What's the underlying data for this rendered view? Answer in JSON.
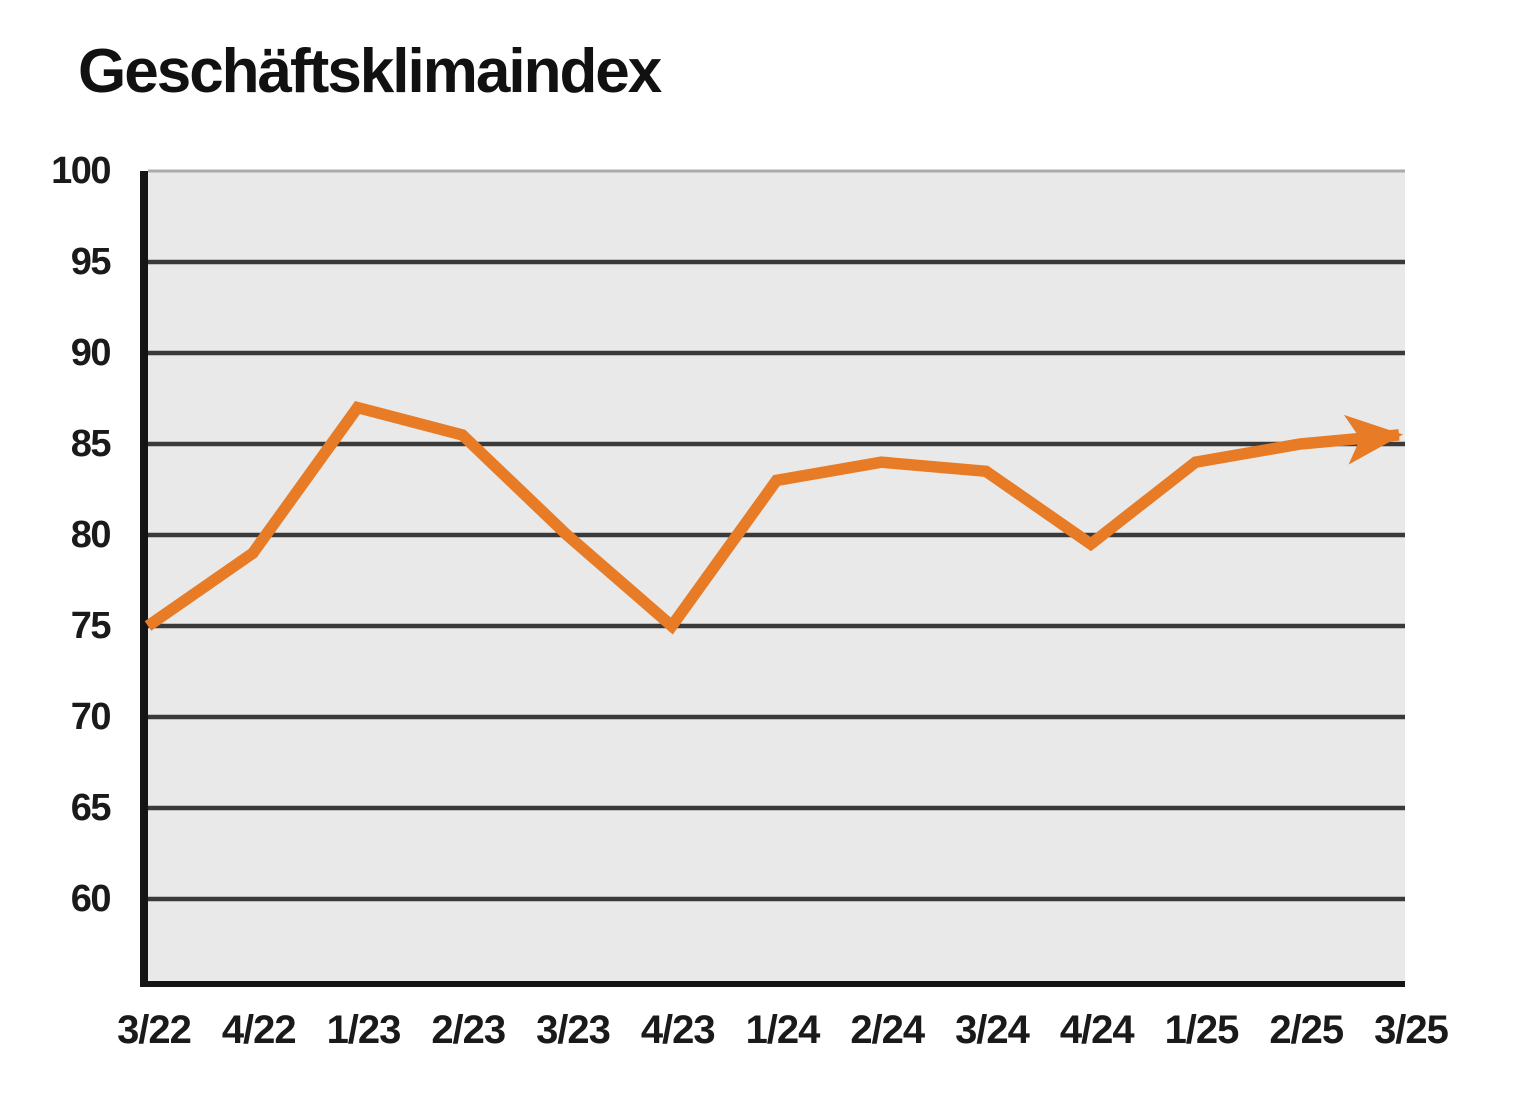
{
  "chart_data": {
    "type": "line",
    "title": "Geschäftsklimaindex",
    "categories": [
      "3/22",
      "4/22",
      "1/23",
      "2/23",
      "3/23",
      "4/23",
      "1/24",
      "2/24",
      "3/24",
      "4/24",
      "1/25",
      "2/25",
      "3/25"
    ],
    "series": [
      {
        "name": "Geschäftsklimaindex",
        "values": [
          75,
          79,
          87,
          85.5,
          80,
          75,
          83,
          84,
          83.5,
          79.5,
          84,
          85,
          85.5
        ]
      }
    ],
    "xlabel": "",
    "ylabel": "",
    "ylim": [
      55,
      100
    ],
    "yticks": [
      60,
      65,
      70,
      75,
      80,
      85,
      90,
      95,
      100
    ],
    "grid": "horizontal",
    "legend": "none",
    "line_ends_with_arrow": true,
    "colors": {
      "line": "#E87B25",
      "plot_background": "#E9E9E9",
      "gridline": "#3A3A3A",
      "top_gridline": "#ABABAB",
      "axis": "#141414",
      "text": "#1A1A1A",
      "page_background": "#FFFFFF"
    }
  }
}
